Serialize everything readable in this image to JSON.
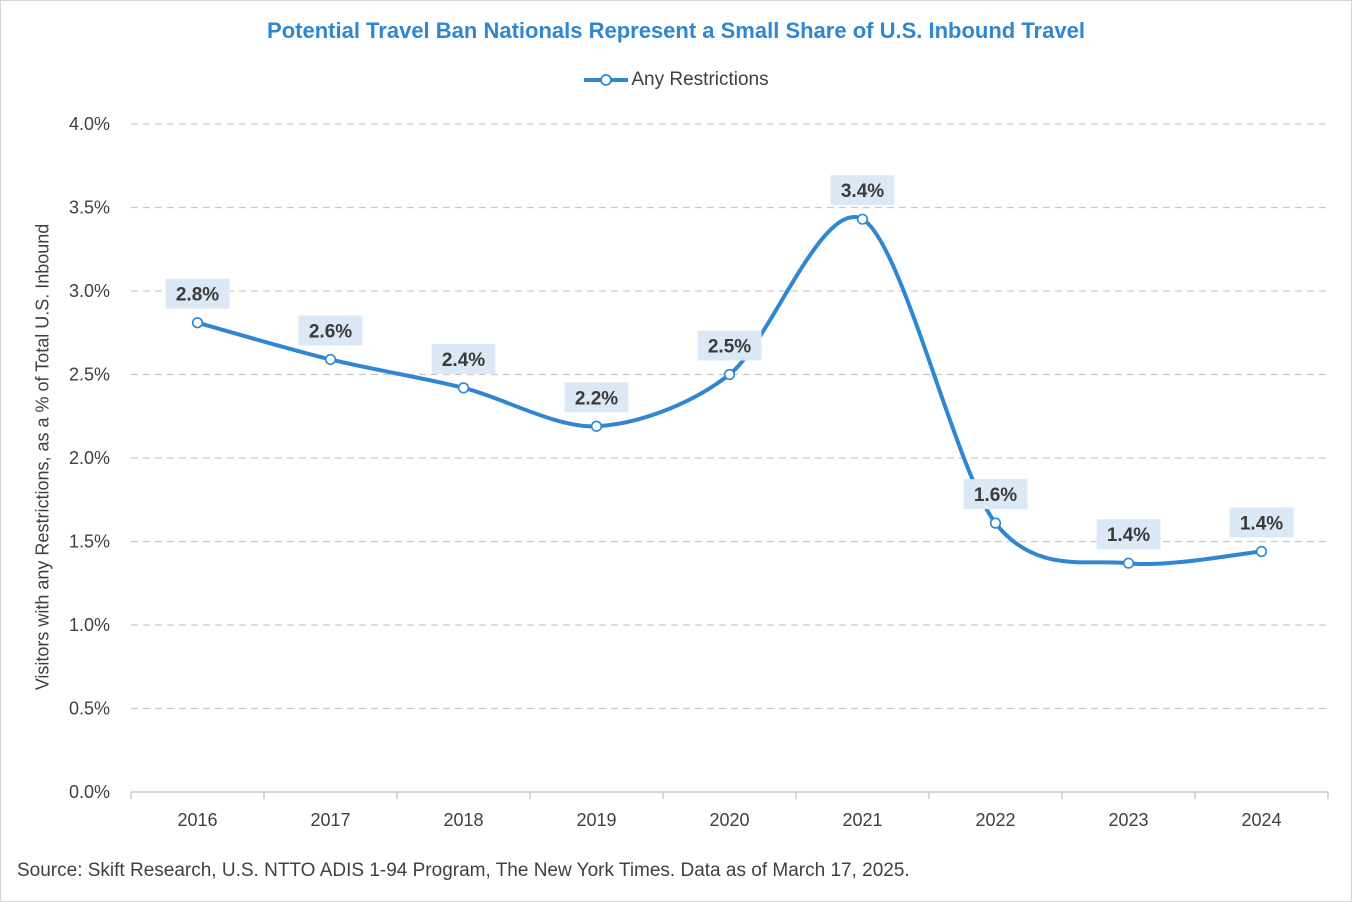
{
  "chart_data": {
    "type": "line",
    "title": "Potential Travel Ban Nationals Represent a Small Share of U.S. Inbound Travel",
    "ylabel": "Visitors with any Restrictions, as a % of Total U.S. Inbound",
    "xlabel": "",
    "categories": [
      "2016",
      "2017",
      "2018",
      "2019",
      "2020",
      "2021",
      "2022",
      "2023",
      "2024"
    ],
    "series": [
      {
        "name": "Any Restrictions",
        "values": [
          2.81,
          2.59,
          2.42,
          2.19,
          2.5,
          3.43,
          1.61,
          1.37,
          1.44
        ],
        "labels": [
          "2.8%",
          "2.6%",
          "2.4%",
          "2.2%",
          "2.5%",
          "3.4%",
          "1.6%",
          "1.4%",
          "1.4%"
        ],
        "color": "#2f86d1",
        "smooth": true
      }
    ],
    "ylim": [
      0,
      4.0
    ],
    "yticks": [
      "0.0%",
      "0.5%",
      "1.0%",
      "1.5%",
      "2.0%",
      "2.5%",
      "3.0%",
      "3.5%",
      "4.0%"
    ],
    "grid": "horizontal dashed",
    "legend": "top-center",
    "label_background": "#dbe9f6"
  },
  "source": "Source: Skift Research, U.S. NTTO ADIS 1-94 Program, The New York Times. Data as of March 17, 2025."
}
